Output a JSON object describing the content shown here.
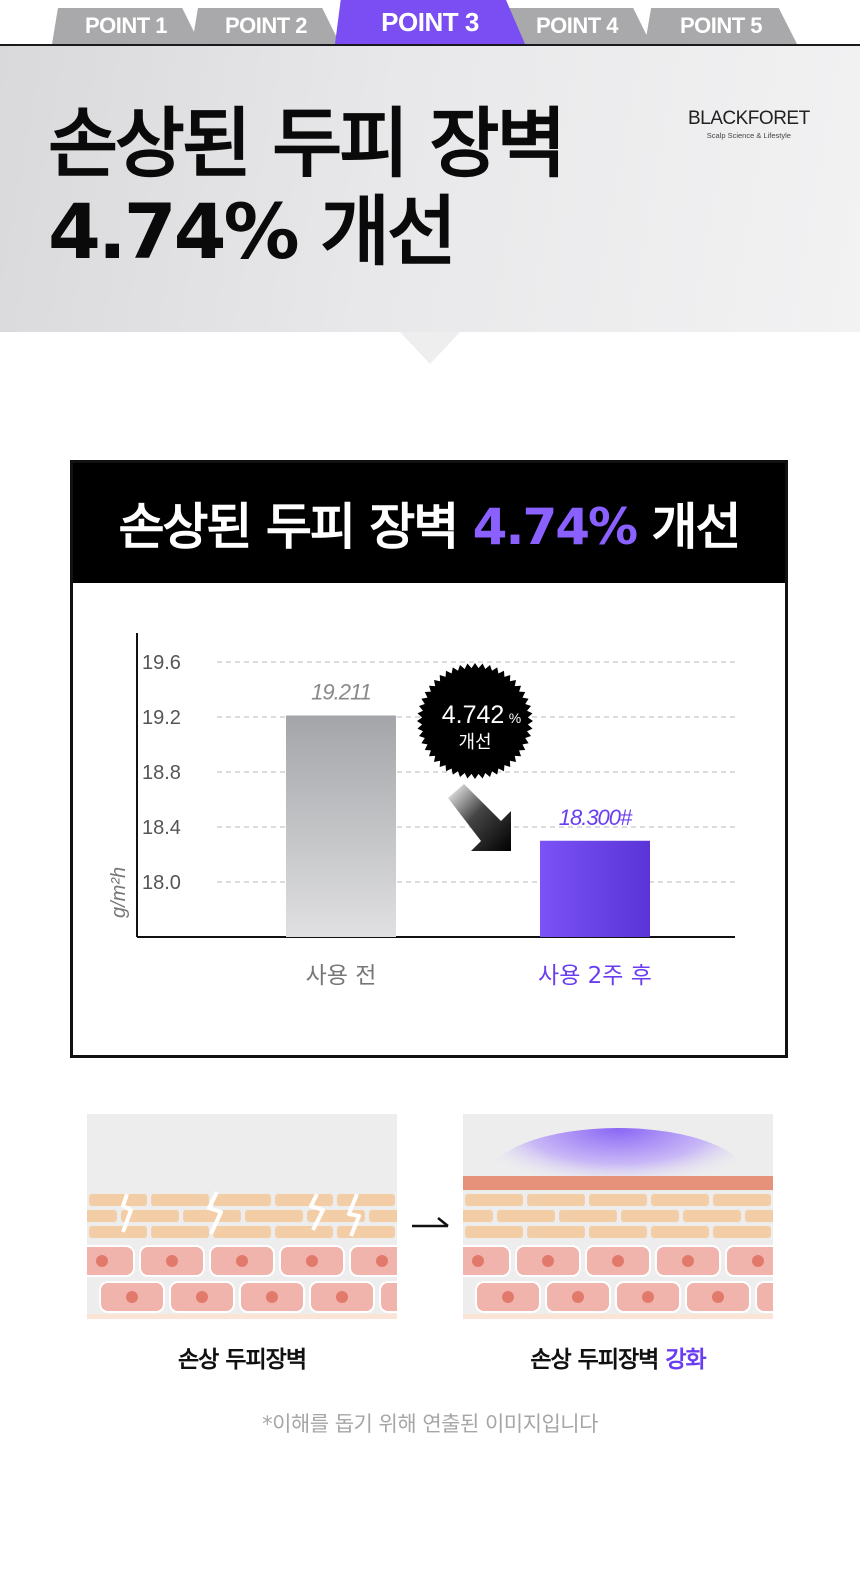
{
  "tabs": [
    {
      "label": "POINT 1",
      "active": false
    },
    {
      "label": "POINT 2",
      "active": false
    },
    {
      "label": "POINT 3",
      "active": true
    },
    {
      "label": "POINT 4",
      "active": false
    },
    {
      "label": "POINT 5",
      "active": false
    }
  ],
  "hero": {
    "title_line1": "손상된 두피 장벽",
    "title_line2": "4.74% 개선"
  },
  "brand": {
    "name": "BLACKFORET",
    "tagline": "Scalp Science & Lifestyle"
  },
  "chart_box": {
    "title_prefix": "손상된 두피 장벽 ",
    "title_highlight": "4.74%",
    "title_suffix": " 개선"
  },
  "chart_data": {
    "type": "bar",
    "categories": [
      "사용 전",
      "사용 2주 후"
    ],
    "values": [
      19.211,
      18.3
    ],
    "value_labels": [
      "19.211",
      "18.300#"
    ],
    "ylabel": "g/m²h",
    "yticks": [
      "19.6",
      "19.2",
      "18.8",
      "18.4",
      "18.0"
    ],
    "ytick_values": [
      19.6,
      19.2,
      18.8,
      18.4,
      18.0
    ],
    "ylim": [
      17.6,
      19.8
    ],
    "grid": true,
    "badge": {
      "value": "4.742",
      "unit": "%",
      "text": "개선"
    },
    "colors": {
      "before": "#a3a5a8",
      "after": "#6b42ee",
      "after_label": "#6a3ef0",
      "before_label": "#8a8a8a"
    }
  },
  "illustrations": {
    "left_caption": "손상 두피장벽",
    "right_caption_prefix": "손상 두피장벽 ",
    "right_caption_highlight": "강화"
  },
  "footnote": "*이해를 돕기 위해 연출된 이미지입니다",
  "colors": {
    "accent": "#7a4ef2",
    "tab_inactive": "#a9a9ab"
  }
}
